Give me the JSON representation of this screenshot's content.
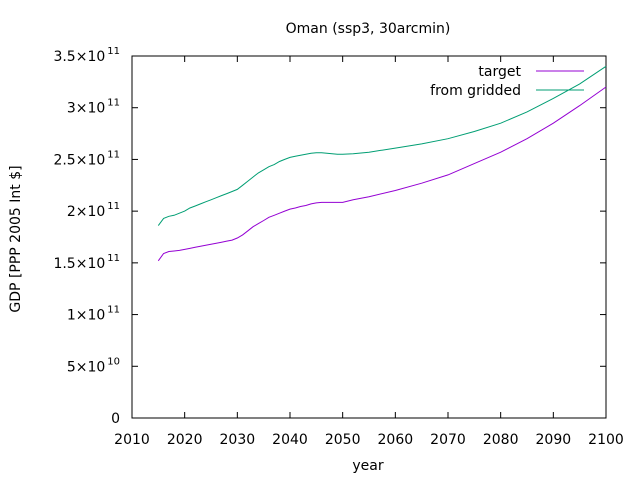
{
  "chart_data": {
    "type": "line",
    "title": "Oman (ssp3, 30arcmin)",
    "xlabel": "year",
    "ylabel": "GDP [PPP 2005 Int $]",
    "xlim": [
      2010,
      2100
    ],
    "ylim": [
      0,
      350000000000
    ],
    "x_ticks": [
      "2010",
      "2020",
      "2030",
      "2040",
      "2050",
      "2060",
      "2070",
      "2080",
      "2090",
      "2100"
    ],
    "y_ticks": [
      {
        "value": 0,
        "mantissa": "0",
        "exponent": ""
      },
      {
        "value": 50000000000,
        "mantissa": "5×10",
        "exponent": "10"
      },
      {
        "value": 100000000000,
        "mantissa": "1×10",
        "exponent": "11"
      },
      {
        "value": 150000000000,
        "mantissa": "1.5×10",
        "exponent": "11"
      },
      {
        "value": 200000000000,
        "mantissa": "2×10",
        "exponent": "11"
      },
      {
        "value": 250000000000,
        "mantissa": "2.5×10",
        "exponent": "11"
      },
      {
        "value": 300000000000,
        "mantissa": "3×10",
        "exponent": "11"
      },
      {
        "value": 350000000000,
        "mantissa": "3.5×10",
        "exponent": "11"
      }
    ],
    "grid": false,
    "legend_position": "top-right",
    "series": [
      {
        "name": "target",
        "color": "#9400d3",
        "x": [
          2015,
          2016,
          2017,
          2018,
          2019,
          2020,
          2021,
          2022,
          2023,
          2024,
          2025,
          2026,
          2027,
          2028,
          2029,
          2030,
          2031,
          2032,
          2033,
          2034,
          2035,
          2036,
          2037,
          2038,
          2039,
          2040,
          2041,
          2042,
          2043,
          2044,
          2045,
          2046,
          2047,
          2048,
          2049,
          2050,
          2052,
          2055,
          2060,
          2065,
          2070,
          2075,
          2080,
          2085,
          2090,
          2095,
          2100
        ],
        "y": [
          152000000000,
          159000000000,
          161000000000,
          161500000000,
          162000000000,
          163000000000,
          164000000000,
          165000000000,
          166000000000,
          167000000000,
          168000000000,
          169000000000,
          170000000000,
          171000000000,
          172000000000,
          174000000000,
          177000000000,
          181000000000,
          185000000000,
          188000000000,
          191000000000,
          194000000000,
          196000000000,
          198000000000,
          200000000000,
          202000000000,
          203000000000,
          204500000000,
          205500000000,
          207000000000,
          208000000000,
          208500000000,
          208500000000,
          208500000000,
          208500000000,
          208500000000,
          211000000000,
          214000000000,
          220000000000,
          227000000000,
          235000000000,
          246000000000,
          257000000000,
          270000000000,
          285000000000,
          302000000000,
          320000000000
        ]
      },
      {
        "name": "from gridded",
        "color": "#009e73",
        "x": [
          2015,
          2016,
          2017,
          2018,
          2019,
          2020,
          2021,
          2022,
          2023,
          2024,
          2025,
          2026,
          2027,
          2028,
          2029,
          2030,
          2031,
          2032,
          2033,
          2034,
          2035,
          2036,
          2037,
          2038,
          2039,
          2040,
          2041,
          2042,
          2043,
          2044,
          2045,
          2046,
          2047,
          2048,
          2049,
          2050,
          2052,
          2055,
          2060,
          2065,
          2070,
          2075,
          2080,
          2085,
          2090,
          2095,
          2100
        ],
        "y": [
          186000000000,
          193000000000,
          195000000000,
          196000000000,
          198000000000,
          200000000000,
          203000000000,
          205000000000,
          207000000000,
          209000000000,
          211000000000,
          213000000000,
          215000000000,
          217000000000,
          219000000000,
          221000000000,
          225000000000,
          229000000000,
          233000000000,
          237000000000,
          240000000000,
          243000000000,
          245000000000,
          248000000000,
          250000000000,
          252000000000,
          253000000000,
          254000000000,
          255000000000,
          256000000000,
          256500000000,
          256500000000,
          256000000000,
          255500000000,
          255000000000,
          255000000000,
          255500000000,
          257000000000,
          261000000000,
          265000000000,
          270000000000,
          277000000000,
          285000000000,
          296000000000,
          309000000000,
          323000000000,
          340000000000
        ]
      }
    ]
  }
}
